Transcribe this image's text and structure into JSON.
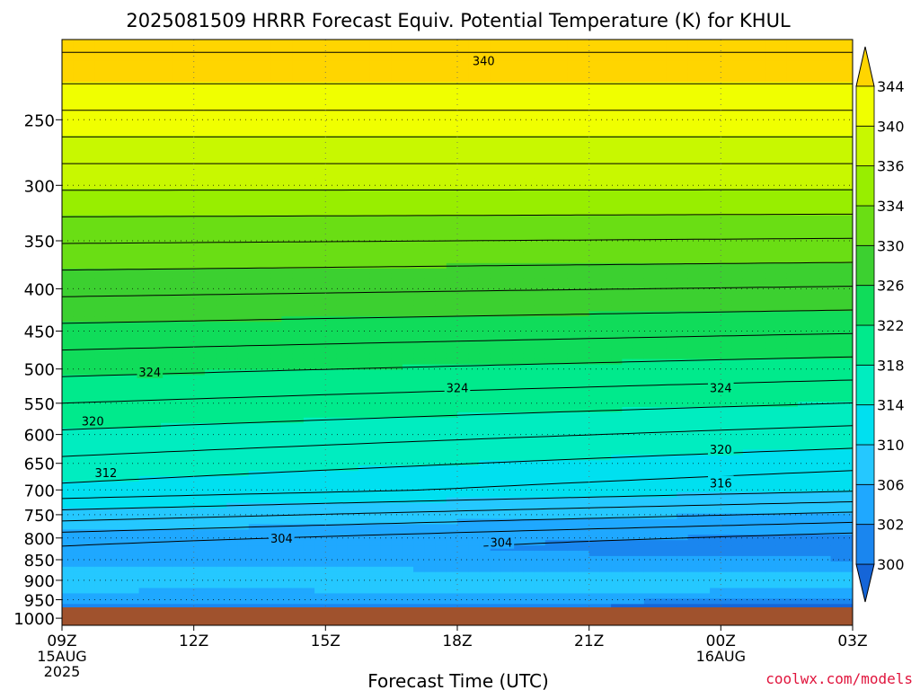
{
  "chart_data": {
    "type": "heatmap",
    "title": "2025081509 HRRR Forecast Equiv. Potential Temperature (K) for KHUL",
    "xlabel": "Forecast Time (UTC)",
    "credit": "coolwx.com/models",
    "x_ticks": [
      {
        "label": "09Z",
        "sub": [
          "15AUG",
          "2025"
        ],
        "hour": 0
      },
      {
        "label": "12Z",
        "sub": [],
        "hour": 3
      },
      {
        "label": "15Z",
        "sub": [],
        "hour": 6
      },
      {
        "label": "18Z",
        "sub": [],
        "hour": 9
      },
      {
        "label": "21Z",
        "sub": [],
        "hour": 12
      },
      {
        "label": "00Z",
        "sub": [
          "16AUG"
        ],
        "hour": 15
      },
      {
        "label": "03Z",
        "sub": [],
        "hour": 18
      }
    ],
    "xlim_hours": [
      0,
      18
    ],
    "y_ticks": [
      250,
      300,
      350,
      400,
      450,
      500,
      550,
      600,
      650,
      700,
      750,
      800,
      850,
      900,
      950,
      1000
    ],
    "ylim_hpa": [
      1020,
      200
    ],
    "colorbar": {
      "tick_labels": [
        "300",
        "302",
        "306",
        "310",
        "314",
        "318",
        "322",
        "326",
        "330",
        "334",
        "336",
        "340",
        "344"
      ],
      "tick_values": [
        300,
        302,
        306,
        310,
        314,
        318,
        322,
        326,
        330,
        334,
        336,
        340,
        344
      ],
      "colors": [
        "#1565d8",
        "#1a86ef",
        "#1fa8ff",
        "#25c8ff",
        "#00e0f0",
        "#00edc0",
        "#00ea8c",
        "#10dc5a",
        "#3cd030",
        "#6ade14",
        "#98ee00",
        "#c8f800",
        "#f0ff00",
        "#ffd500"
      ]
    },
    "contour_labels": [
      {
        "text": "340",
        "hour": 9.6,
        "hpa": 212
      },
      {
        "text": "324",
        "hour": 2.0,
        "hpa": 504
      },
      {
        "text": "324",
        "hour": 9.0,
        "hpa": 527
      },
      {
        "text": "324",
        "hour": 15.0,
        "hpa": 527
      },
      {
        "text": "320",
        "hour": 0.7,
        "hpa": 578
      },
      {
        "text": "320",
        "hour": 15.0,
        "hpa": 625
      },
      {
        "text": "312",
        "hour": 1.0,
        "hpa": 667
      },
      {
        "text": "316",
        "hour": 15.0,
        "hpa": 686
      },
      {
        "text": "304",
        "hour": 5.0,
        "hpa": 800
      },
      {
        "text": "304",
        "hour": 10.0,
        "hpa": 810
      }
    ]
  }
}
